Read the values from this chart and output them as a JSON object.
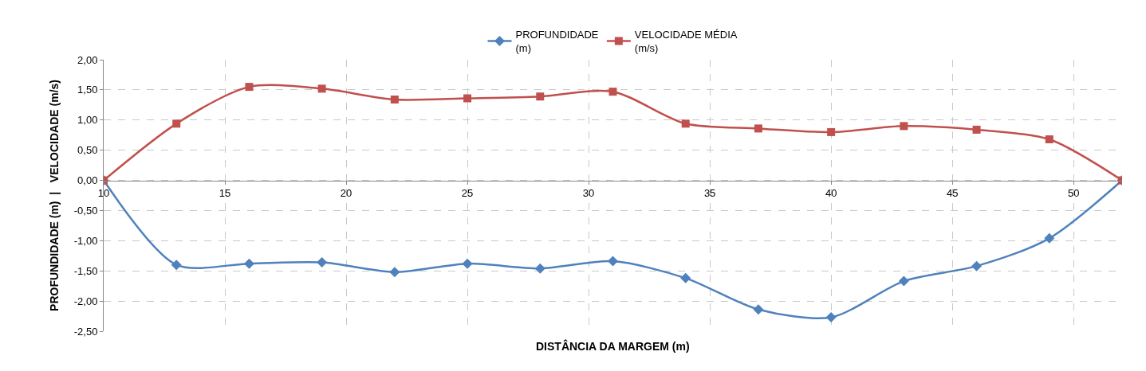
{
  "chart_data": {
    "type": "line",
    "xlabel": "DISTÂNCIA DA MARGEM (m)",
    "ylabel": "PROFUNDIDADE (m)  |   VELOCIDADE (m/s)",
    "x": [
      10,
      13,
      16,
      19,
      22,
      25,
      28,
      31,
      34,
      37,
      40,
      43,
      46,
      49,
      52
    ],
    "series": [
      {
        "name": "PROFUNDIDADE (m)",
        "color": "#4f81bd",
        "marker": "diamond",
        "values": [
          0,
          -1.4,
          -1.38,
          -1.36,
          -1.52,
          -1.38,
          -1.46,
          -1.34,
          -1.62,
          -2.14,
          -2.27,
          -1.67,
          -1.42,
          -0.96,
          0
        ]
      },
      {
        "name": "VELOCIDADE MÉDIA (m/s)",
        "color": "#c0504d",
        "marker": "square",
        "values": [
          0,
          0.94,
          1.55,
          1.52,
          1.34,
          1.36,
          1.39,
          1.47,
          0.94,
          0.86,
          0.8,
          0.9,
          0.84,
          0.68,
          0
        ]
      }
    ],
    "xlim": [
      10,
      52
    ],
    "xticks": [
      10,
      15,
      20,
      25,
      30,
      35,
      40,
      45,
      50
    ],
    "ylim": [
      -2.5,
      2
    ],
    "yticks": [
      {
        "value": -2.5,
        "label": "-2,50"
      },
      {
        "value": -2,
        "label": "-2,00"
      },
      {
        "value": -1.5,
        "label": "-1,50"
      },
      {
        "value": -1,
        "label": "-1,00"
      },
      {
        "value": -0.5,
        "label": "-0,50"
      },
      {
        "value": 0,
        "label": "0,00"
      },
      {
        "value": 0.5,
        "label": "0,50"
      },
      {
        "value": 1,
        "label": "1,00"
      },
      {
        "value": 1.5,
        "label": "1,50"
      },
      {
        "value": 2,
        "label": "2,00"
      }
    ],
    "grid": true,
    "legend": "top",
    "line_style": "solid"
  }
}
